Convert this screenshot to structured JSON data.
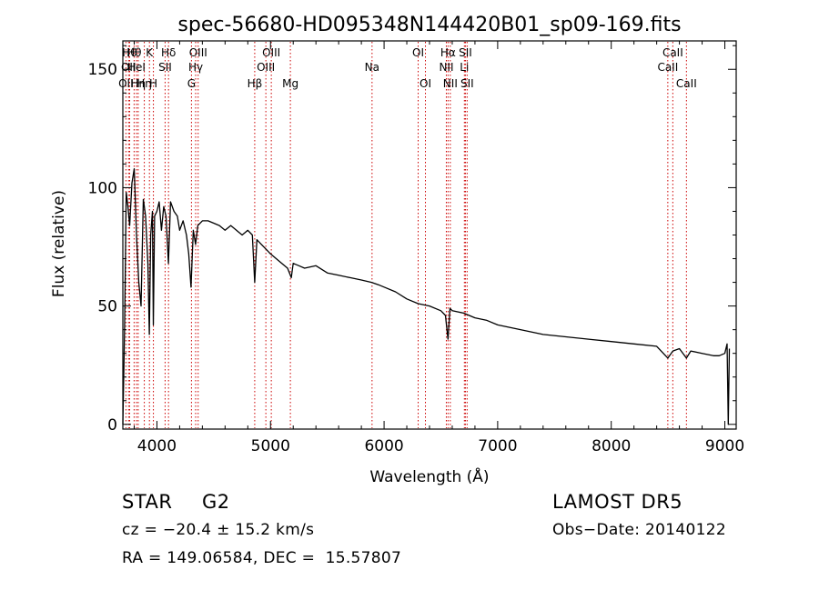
{
  "chart_data": {
    "type": "line",
    "title": "spec-56680-HD095348N144420B01_sp09-169.fits",
    "xlabel": "Wavelength (Å)",
    "ylabel": "Flux (relative)",
    "xlim": [
      3700,
      9100
    ],
    "ylim": [
      -2,
      162
    ],
    "xticks": [
      4000,
      5000,
      6000,
      7000,
      8000,
      9000
    ],
    "yticks": [
      0,
      50,
      100,
      150
    ],
    "grid": false,
    "line_color": "#000000",
    "marker_color": "#cc0000",
    "series": [
      {
        "x": [
          3700,
          3715,
          3730,
          3745,
          3760,
          3780,
          3800,
          3820,
          3840,
          3860,
          3880,
          3900,
          3920,
          3933,
          3945,
          3960,
          3968,
          3980,
          4000,
          4020,
          4040,
          4060,
          4080,
          4101,
          4120,
          4150,
          4180,
          4200,
          4230,
          4260,
          4280,
          4300,
          4320,
          4340,
          4360,
          4400,
          4450,
          4500,
          4550,
          4600,
          4650,
          4700,
          4750,
          4800,
          4840,
          4861,
          4880,
          4920,
          4960,
          5000,
          5050,
          5100,
          5150,
          5183,
          5200,
          5250,
          5300,
          5400,
          5500,
          5600,
          5700,
          5800,
          5890,
          5950,
          6000,
          6100,
          6200,
          6300,
          6400,
          6500,
          6540,
          6563,
          6580,
          6600,
          6700,
          6800,
          6900,
          7000,
          7200,
          7400,
          7600,
          7800,
          8000,
          8200,
          8400,
          8498,
          8542,
          8600,
          8662,
          8700,
          8800,
          8900,
          8950,
          9000,
          9020,
          9030,
          9040
        ],
        "y": [
          0,
          40,
          98,
          92,
          84,
          102,
          108,
          80,
          60,
          50,
          95,
          88,
          68,
          38,
          80,
          90,
          42,
          88,
          90,
          94,
          82,
          92,
          88,
          68,
          94,
          90,
          88,
          82,
          86,
          80,
          72,
          58,
          82,
          76,
          84,
          86,
          86,
          85,
          84,
          82,
          84,
          82,
          80,
          82,
          80,
          60,
          78,
          76,
          74,
          72,
          70,
          68,
          66,
          62,
          68,
          67,
          66,
          67,
          64,
          63,
          62,
          61,
          60,
          59,
          58,
          56,
          53,
          51,
          50,
          48,
          46,
          36,
          49,
          48,
          47,
          45,
          44,
          42,
          40,
          38,
          37,
          36,
          35,
          34,
          33,
          28,
          31,
          32,
          28,
          31,
          30,
          29,
          29,
          30,
          34,
          0,
          32
        ]
      }
    ],
    "lines": [
      {
        "x": 3727,
        "row": 3,
        "label": "OII"
      },
      {
        "x": 3750,
        "row": 2,
        "label": "OII"
      },
      {
        "x": 3760,
        "row": 1,
        "label": "Hθ"
      },
      {
        "x": 3799,
        "row": 1,
        "label": "Hθ"
      },
      {
        "x": 3820,
        "row": 2,
        "label": "HeI"
      },
      {
        "x": 3835,
        "row": 3,
        "label": "Hη"
      },
      {
        "x": 3889,
        "row": 3,
        "label": "Hη"
      },
      {
        "x": 3934,
        "row": 1,
        "label": "K"
      },
      {
        "x": 3969,
        "row": 3,
        "label": "H"
      },
      {
        "x": 4072,
        "row": 2,
        "label": "SII"
      },
      {
        "x": 4102,
        "row": 1,
        "label": "Hδ"
      },
      {
        "x": 4304,
        "row": 3,
        "label": "G"
      },
      {
        "x": 4341,
        "row": 2,
        "label": "Hγ"
      },
      {
        "x": 4363,
        "row": 1,
        "label": "OIII"
      },
      {
        "x": 4861,
        "row": 3,
        "label": "Hβ"
      },
      {
        "x": 4959,
        "row": 2,
        "label": "OIII"
      },
      {
        "x": 5007,
        "row": 1,
        "label": "OIII"
      },
      {
        "x": 5175,
        "row": 3,
        "label": "Mg"
      },
      {
        "x": 5894,
        "row": 2,
        "label": "Na"
      },
      {
        "x": 6300,
        "row": 1,
        "label": "OI"
      },
      {
        "x": 6364,
        "row": 3,
        "label": "OI"
      },
      {
        "x": 6548,
        "row": 2,
        "label": "NII"
      },
      {
        "x": 6563,
        "row": 1,
        "label": "Hα"
      },
      {
        "x": 6583,
        "row": 3,
        "label": "NII"
      },
      {
        "x": 6707,
        "row": 2,
        "label": "Li"
      },
      {
        "x": 6716,
        "row": 1,
        "label": "SII"
      },
      {
        "x": 6731,
        "row": 3,
        "label": "SII"
      },
      {
        "x": 8498,
        "row": 2,
        "label": "CaII"
      },
      {
        "x": 8542,
        "row": 1,
        "label": "CaII"
      },
      {
        "x": 8662,
        "row": 3,
        "label": "CaII"
      }
    ]
  },
  "info": {
    "object_class": "STAR",
    "subclass": "G2",
    "survey": "LAMOST DR5",
    "cz": "cz = −20.4 ± 15.2 km/s",
    "obs_date": "Obs−Date: 20140122",
    "coords": "RA = 149.06584, DEC =  15.57807"
  }
}
